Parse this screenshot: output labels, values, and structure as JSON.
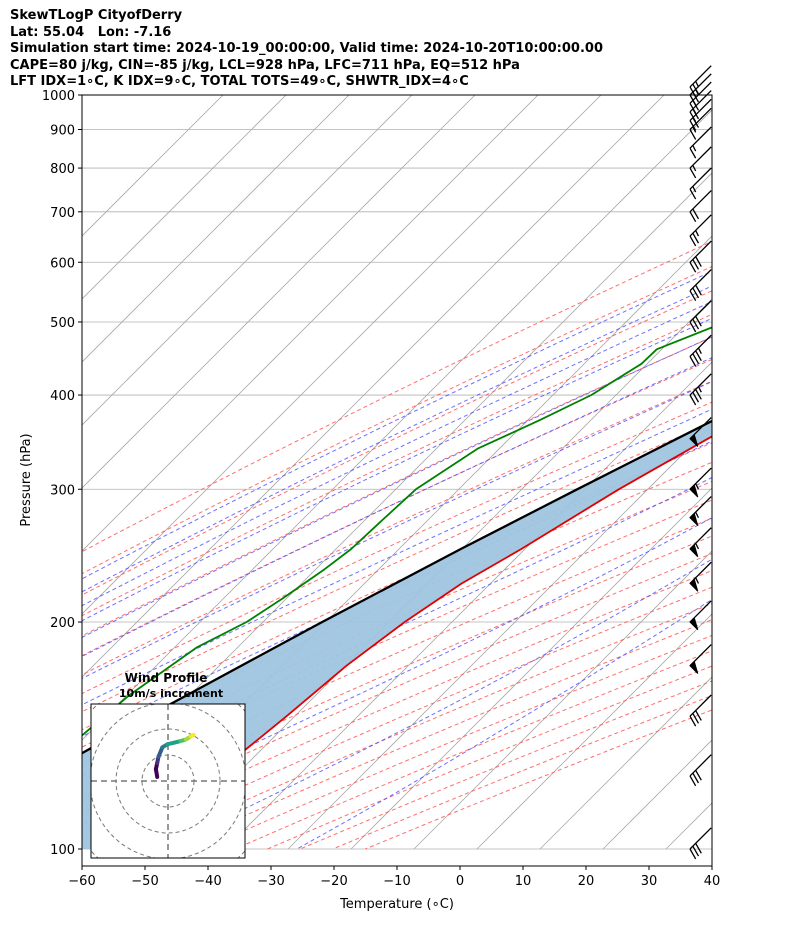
{
  "header": {
    "line1": "SkewTLogP CityofDerry",
    "line2": "Lat: 55.04   Lon: -7.16",
    "line3": "Simulation start time: 2024-10-19_00:00:00, Valid time: 2024-10-20T10:00:00.00",
    "line4": "CAPE=80 j/kg, CIN=-85 j/kg, LCL=928 hPa, LFC=711 hPa, EQ=512 hPa",
    "line5": "LFT IDX=1∘C, K IDX=9∘C, TOTAL TOTS=49∘C, SHWTR_IDX=4∘C"
  },
  "inset": {
    "title": "Wind Profile",
    "subtitle": "10m/s increment"
  },
  "chart_data": {
    "type": "skewt",
    "xlabel": "Temperature (∘C)",
    "ylabel": "Pressure (hPa)",
    "xlim": [
      -60,
      40
    ],
    "ylim": [
      1050,
      100
    ],
    "x_ticks": [
      -60,
      -50,
      -40,
      -30,
      -20,
      -10,
      0,
      10,
      20,
      30,
      40
    ],
    "x_tick_labels": [
      "−60",
      "−50",
      "−40",
      "−30",
      "−20",
      "−10",
      "0",
      "10",
      "20",
      "30",
      "40"
    ],
    "y_ticks": [
      1000,
      900,
      800,
      700,
      600,
      500,
      400,
      300,
      200,
      100
    ],
    "y_tick_labels": [
      "1000",
      "900",
      "800",
      "700",
      "600",
      "500",
      "400",
      "300",
      "200",
      "100"
    ],
    "temperature": {
      "p": [
        985,
        970,
        950,
        925,
        900,
        875,
        850,
        825,
        800,
        775,
        750,
        725,
        700,
        675,
        650,
        625,
        600,
        575,
        550,
        525,
        500,
        450,
        400,
        350,
        300,
        250,
        225,
        200,
        175,
        150,
        130,
        115,
        100
      ],
      "t": [
        10.8,
        11.0,
        11.2,
        11.3,
        11.6,
        11.8,
        11.6,
        10.9,
        9.7,
        8.3,
        6.7,
        5.0,
        3.2,
        1.4,
        -0.4,
        -2.2,
        -4.0,
        -6.0,
        -8.1,
        -10.3,
        -12.6,
        -17.4,
        -22.8,
        -28.5,
        -34.6,
        -40.6,
        -44.6,
        -47.5,
        -49.8,
        -51.3,
        -53.0,
        -54.6,
        -56.4
      ]
    },
    "dewpoint": {
      "p": [
        985,
        960,
        940,
        925,
        900,
        875,
        850,
        800,
        750,
        700,
        650,
        600,
        550,
        500,
        460,
        440,
        400,
        370,
        340,
        300,
        270,
        250,
        235,
        215,
        200,
        185,
        160,
        130,
        100
      ],
      "td": [
        10.1,
        9.8,
        9.0,
        7.5,
        4.0,
        -0.5,
        -5.0,
        -12.7,
        -17.0,
        -20.3,
        -24.5,
        -29.5,
        -35.4,
        -44.2,
        -50.8,
        -50.9,
        -53.9,
        -58.2,
        -63.4,
        -66.8,
        -67.3,
        -67.6,
        -68.6,
        -70.6,
        -72.6,
        -76.5,
        -79.6,
        -81.5,
        -83.6
      ]
    },
    "parcel": {
      "p": [
        985,
        960,
        940,
        928,
        900,
        850,
        800,
        750,
        711,
        650,
        600,
        550,
        512,
        450,
        400,
        350,
        300,
        250,
        200,
        150,
        100
      ],
      "t": [
        13.9,
        12.2,
        10.8,
        9.8,
        9.0,
        7.2,
        5.1,
        2.8,
        0.7,
        -3.0,
        -6.6,
        -10.7,
        -14.1,
        -20.5,
        -26.6,
        -33.4,
        -41.2,
        -50.2,
        -60.6,
        -73.3,
        -89.8
      ]
    },
    "wind_barbs": {
      "p": [
        100,
        125,
        150,
        175,
        200,
        225,
        250,
        275,
        300,
        350,
        400,
        450,
        500,
        550,
        600,
        650,
        700,
        750,
        800,
        850,
        900,
        925,
        950,
        975,
        1000,
        1025
      ],
      "speed_kt": [
        30,
        30,
        30,
        50,
        50,
        55,
        55,
        55,
        55,
        50,
        35,
        35,
        30,
        30,
        30,
        25,
        20,
        15,
        15,
        15,
        15,
        20,
        20,
        20,
        25,
        25
      ],
      "dir_deg": [
        230,
        230,
        230,
        230,
        230,
        230,
        230,
        230,
        230,
        230,
        230,
        230,
        230,
        230,
        230,
        230,
        230,
        230,
        230,
        230,
        230,
        230,
        230,
        250,
        260,
        265
      ]
    },
    "hodograph": {
      "increment": "10m/s",
      "rings_ms": [
        10,
        20,
        30,
        40
      ],
      "u_ms": [
        12,
        10,
        6,
        2,
        -3,
        -8,
        -12,
        -15,
        -16,
        -17,
        -16
      ],
      "v_ms": [
        36,
        35,
        33,
        32,
        31,
        30,
        28,
        22,
        18,
        14,
        9
      ]
    },
    "colors": {
      "temperature": "#e00000",
      "dewpoint": "#008000",
      "parcel": "#000000",
      "cape_fill": "#9fc5df",
      "cin_fill": "#f08a8a",
      "dry_adiabat": "#ff5555",
      "moist_adiabat": "#4a4aff",
      "mixing_ratio": "#a050c8",
      "isotherm": "#999999"
    }
  }
}
